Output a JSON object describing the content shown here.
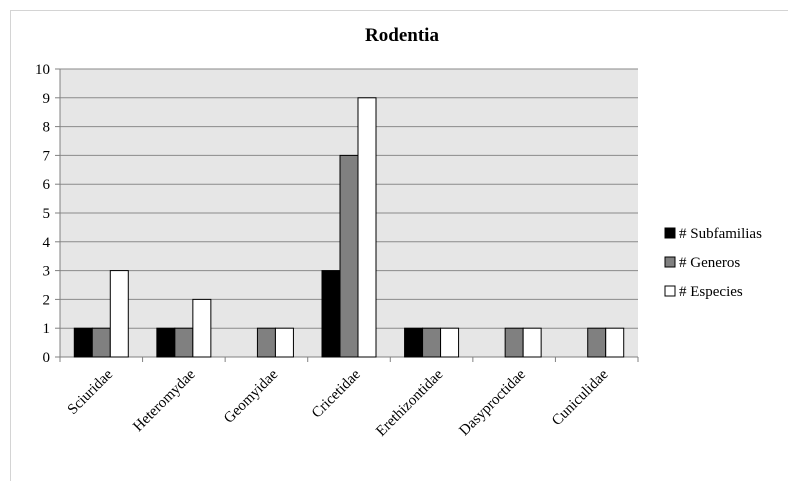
{
  "chart_data": {
    "type": "bar",
    "title": "Rodentia",
    "xlabel": "",
    "ylabel": "",
    "ylim": [
      0,
      10
    ],
    "yticks": [
      "0",
      "1",
      "2",
      "3",
      "4",
      "5",
      "6",
      "7",
      "8",
      "9",
      "10"
    ],
    "categories": [
      "Sciuridae",
      "Heteromydae",
      "Geomyidae",
      "Cricetidae",
      "Erethizontidae",
      "Dasyproctidae",
      "Cuniculidae"
    ],
    "series": [
      {
        "name": "# Subfamilias",
        "color": "#000000",
        "values": [
          1,
          1,
          0,
          3,
          1,
          0,
          0
        ]
      },
      {
        "name": "# Generos",
        "color": "#808080",
        "values": [
          1,
          1,
          1,
          7,
          1,
          1,
          1
        ]
      },
      {
        "name": "# Especies",
        "color": "#ffffff",
        "values": [
          3,
          2,
          1,
          9,
          1,
          1,
          1
        ]
      }
    ],
    "grid": true,
    "plot_background": "#e6e6e6",
    "legend_position": "right"
  }
}
